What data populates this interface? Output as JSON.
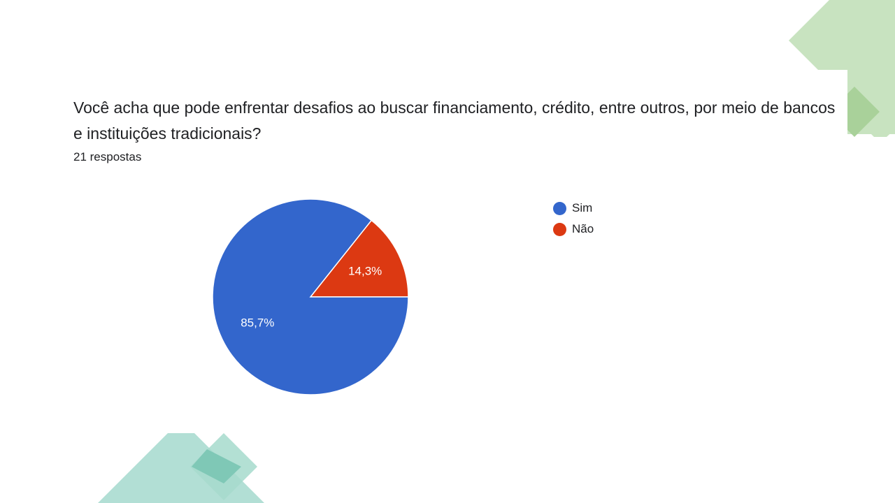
{
  "question": "Você acha que pode enfrentar desafios ao buscar financiamento, crédito, entre outros, por meio de bancos e instituições tradicionais?",
  "response_count": "21 respostas",
  "colors": {
    "sim": "#3366cc",
    "nao": "#dc3912",
    "deco_green": "#b6dba8",
    "deco_teal": "#a3d8cc"
  },
  "chart_data": {
    "type": "pie",
    "categories": [
      "Sim",
      "Não"
    ],
    "values": [
      85.7,
      14.3
    ],
    "data_labels": [
      "85,7%",
      "14,3%"
    ],
    "colors": [
      "#3366cc",
      "#dc3912"
    ],
    "legend": "right"
  }
}
